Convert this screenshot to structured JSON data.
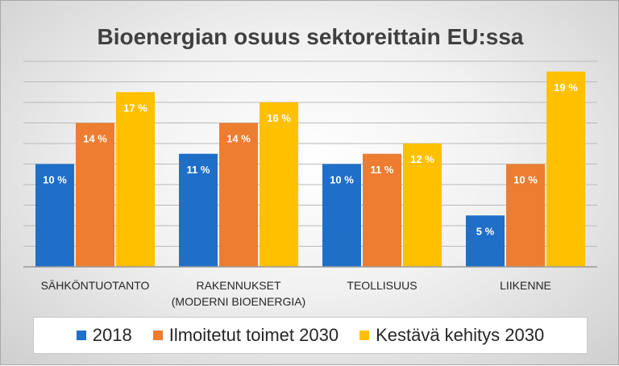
{
  "chart_data": {
    "type": "bar",
    "title": "Bioenergian osuus sektoreittain EU:ssa",
    "categories": [
      [
        "SÄHKÖNTUOTANTO"
      ],
      [
        "RAKENNUKSET",
        "(MODERNI BIOENERGIA)"
      ],
      [
        "TEOLLISUUS"
      ],
      [
        "LIIKENNE"
      ]
    ],
    "series": [
      {
        "name": "2018",
        "color": "#1f6fc8",
        "values": [
          10,
          11,
          10,
          5
        ],
        "labels": [
          "10 %",
          "11 %",
          "10 %",
          "5 %"
        ]
      },
      {
        "name": "Ilmoitetut toimet 2030",
        "color": "#ed7d31",
        "values": [
          14,
          14,
          11,
          10
        ],
        "labels": [
          "14 %",
          "14 %",
          "11 %",
          "10 %"
        ]
      },
      {
        "name": "Kestävä kehitys 2030",
        "color": "#ffc000",
        "values": [
          17,
          16,
          12,
          19
        ],
        "labels": [
          "17 %",
          "16 %",
          "12 %",
          "19 %"
        ]
      }
    ],
    "ylim": [
      0,
      20
    ],
    "grid": true,
    "legend_position": "bottom"
  }
}
